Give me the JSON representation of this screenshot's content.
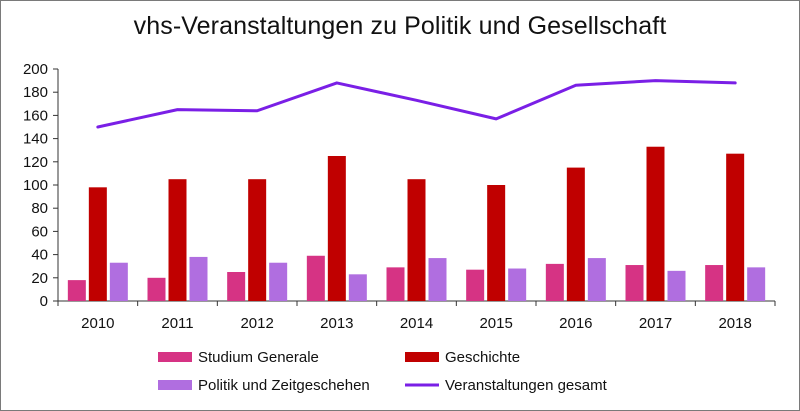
{
  "chart_data": {
    "type": "bar",
    "title": "vhs-Veranstaltungen zu Politik und Gesellschaft",
    "categories": [
      "2010",
      "2011",
      "2012",
      "2013",
      "2014",
      "2015",
      "2016",
      "2017",
      "2018"
    ],
    "ylim": [
      0,
      200
    ],
    "yticks": [
      0,
      20,
      40,
      60,
      80,
      100,
      120,
      140,
      160,
      180,
      200
    ],
    "grid": false,
    "legend_position": "bottom",
    "series": [
      {
        "name": "Studium Generale",
        "kind": "bar",
        "color": "#d63384",
        "values": [
          18,
          20,
          25,
          39,
          29,
          27,
          32,
          31,
          31
        ]
      },
      {
        "name": "Geschichte",
        "kind": "bar",
        "color": "#c00000",
        "values": [
          98,
          105,
          105,
          125,
          105,
          100,
          115,
          133,
          127
        ]
      },
      {
        "name": "Politik und Zeitgeschehen",
        "kind": "bar",
        "color": "#b06ee0",
        "values": [
          33,
          38,
          33,
          23,
          37,
          28,
          37,
          26,
          29
        ]
      },
      {
        "name": "Veranstaltungen gesamt",
        "kind": "line",
        "color": "#7a1fe6",
        "values": [
          150,
          165,
          164,
          188,
          173,
          157,
          186,
          190,
          188
        ]
      }
    ]
  }
}
